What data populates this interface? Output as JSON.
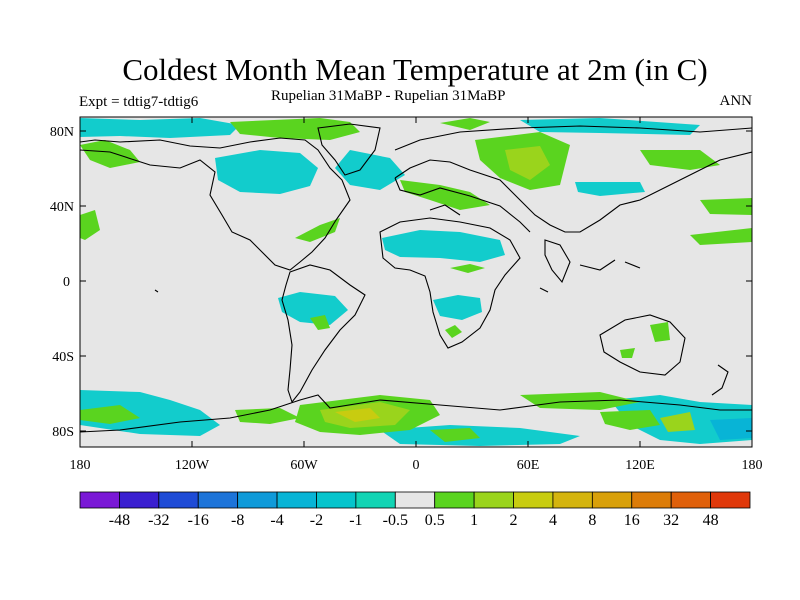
{
  "title": "Coldest Month Mean Temperature at 2m (in C)",
  "experiment_label": "Expt = tdtig7-tdtig6",
  "scenario_label": "Rupelian  31MaBP - Rupelian  31MaBP",
  "period_label": "ANN",
  "map": {
    "background_color": "#e6e6e6",
    "lat_ticks": [
      "80N",
      "40N",
      "0",
      "40S",
      "80S"
    ],
    "lon_ticks": [
      "180",
      "120W",
      "60W",
      "0",
      "60E",
      "120E",
      "180"
    ]
  },
  "colorbar": {
    "colors": [
      "#7a18d6",
      "#3a1fd0",
      "#1e4bd6",
      "#1d74d9",
      "#0f9ad9",
      "#08b4d6",
      "#06c4cc",
      "#12d4b4",
      "#e6e6e6",
      "#5ad41f",
      "#9ad41c",
      "#c8cc10",
      "#d4b40e",
      "#d8a00a",
      "#dc7c08",
      "#e0600a",
      "#e0380a"
    ],
    "labels": [
      "-48",
      "-32",
      "-16",
      "-8",
      "-4",
      "-2",
      "-1",
      "-0.5",
      "0.5",
      "1",
      "2",
      "4",
      "8",
      "16",
      "32",
      "48"
    ]
  }
}
